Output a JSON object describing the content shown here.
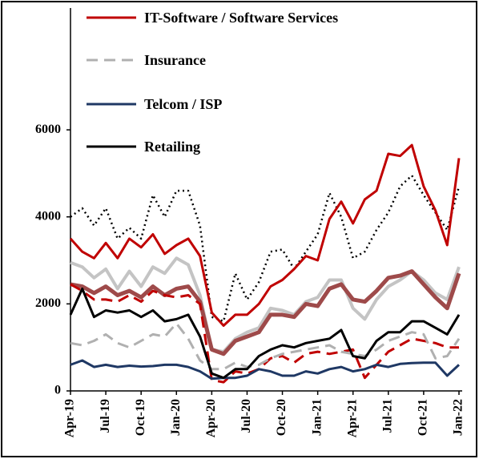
{
  "chart_data": {
    "type": "line",
    "categories": [
      "Apr-19",
      null,
      null,
      "Jul-19",
      null,
      null,
      "Oct-19",
      null,
      null,
      "Jan-20",
      null,
      null,
      "Apr-20",
      null,
      null,
      "Jul-20",
      null,
      null,
      "Oct-20",
      null,
      null,
      "Jan-21",
      null,
      null,
      "Apr-21",
      null,
      null,
      "Jul-21",
      null,
      null,
      "Oct-21",
      null,
      null,
      "Jan-22"
    ],
    "series": [
      {
        "color": "#c4c4c4",
        "style": "solid",
        "width": 4,
        "values": [
          2950,
          2850,
          2600,
          2800,
          2350,
          2750,
          2400,
          2850,
          2700,
          3050,
          2900,
          2200,
          950,
          900,
          1200,
          1350,
          1450,
          1900,
          1850,
          1750,
          2050,
          2150,
          2550,
          2550,
          1900,
          1650,
          2100,
          2400,
          2550,
          2750,
          2550,
          2250,
          2100,
          2850
        ]
      },
      {
        "color": "#9e4a4a",
        "style": "solid",
        "width": 5,
        "values": [
          2450,
          2400,
          2250,
          2400,
          2200,
          2300,
          2150,
          2400,
          2200,
          2350,
          2400,
          2050,
          950,
          850,
          1150,
          1250,
          1350,
          1750,
          1750,
          1700,
          2000,
          1950,
          2350,
          2450,
          2100,
          2050,
          2300,
          2600,
          2650,
          2750,
          2450,
          2150,
          1900,
          2700
        ]
      },
      {
        "color": "#000000",
        "style": "dotted",
        "width": 2.5,
        "values": [
          4000,
          4200,
          3800,
          4200,
          3500,
          3750,
          3500,
          4500,
          4000,
          4600,
          4600,
          3800,
          1700,
          1600,
          2700,
          2100,
          2500,
          3200,
          3250,
          2800,
          3200,
          3600,
          4550,
          4000,
          3050,
          3200,
          3700,
          4100,
          4700,
          4950,
          4500,
          4100,
          3700,
          4700
        ]
      },
      {
        "color": "#c00000",
        "style": "dashed",
        "width": 3,
        "values": [
          2450,
          2300,
          2100,
          2100,
          2050,
          2200,
          2050,
          2300,
          2200,
          2150,
          2200,
          2000,
          250,
          200,
          450,
          400,
          500,
          750,
          800,
          650,
          850,
          900,
          850,
          900,
          950,
          300,
          600,
          900,
          1050,
          1200,
          1150,
          1100,
          1000,
          1000
        ]
      },
      {
        "name": "IT-Software / Software Services",
        "color": "#c00000",
        "style": "solid",
        "width": 3,
        "values": [
          3500,
          3200,
          3050,
          3400,
          3050,
          3500,
          3300,
          3600,
          3150,
          3350,
          3500,
          3100,
          1800,
          1500,
          1750,
          1750,
          2000,
          2400,
          2550,
          2800,
          3100,
          3000,
          3950,
          4350,
          3850,
          4400,
          4600,
          5450,
          5400,
          5650,
          4700,
          4150,
          3350,
          5350
        ]
      },
      {
        "name": "Insurance",
        "color": "#b0b0b0",
        "style": "dashed",
        "width": 3,
        "values": [
          1100,
          1050,
          1150,
          1300,
          1100,
          1000,
          1150,
          1300,
          1250,
          1550,
          1200,
          700,
          500,
          500,
          650,
          550,
          600,
          750,
          850,
          900,
          950,
          1000,
          1050,
          900,
          850,
          800,
          950,
          1150,
          1250,
          1350,
          1300,
          750,
          800,
          1200
        ]
      },
      {
        "name": "Telcom / ISP",
        "color": "#1f3864",
        "style": "solid",
        "width": 3,
        "values": [
          600,
          700,
          550,
          600,
          550,
          580,
          560,
          570,
          600,
          600,
          550,
          450,
          280,
          300,
          300,
          350,
          500,
          450,
          350,
          350,
          450,
          400,
          500,
          550,
          450,
          500,
          600,
          550,
          620,
          640,
          650,
          650,
          350,
          600
        ]
      },
      {
        "name": "Retailing",
        "color": "#000000",
        "style": "solid",
        "width": 3,
        "values": [
          1750,
          2350,
          1700,
          1850,
          1800,
          1850,
          1700,
          1850,
          1600,
          1650,
          1750,
          1250,
          400,
          300,
          500,
          500,
          800,
          950,
          1050,
          1000,
          1100,
          1150,
          1200,
          1400,
          800,
          750,
          1150,
          1350,
          1350,
          1600,
          1600,
          1450,
          1300,
          1750
        ]
      }
    ],
    "ylim": [
      0,
      8800
    ],
    "yticks": [
      0,
      2000,
      4000,
      6000
    ],
    "grid": false
  }
}
